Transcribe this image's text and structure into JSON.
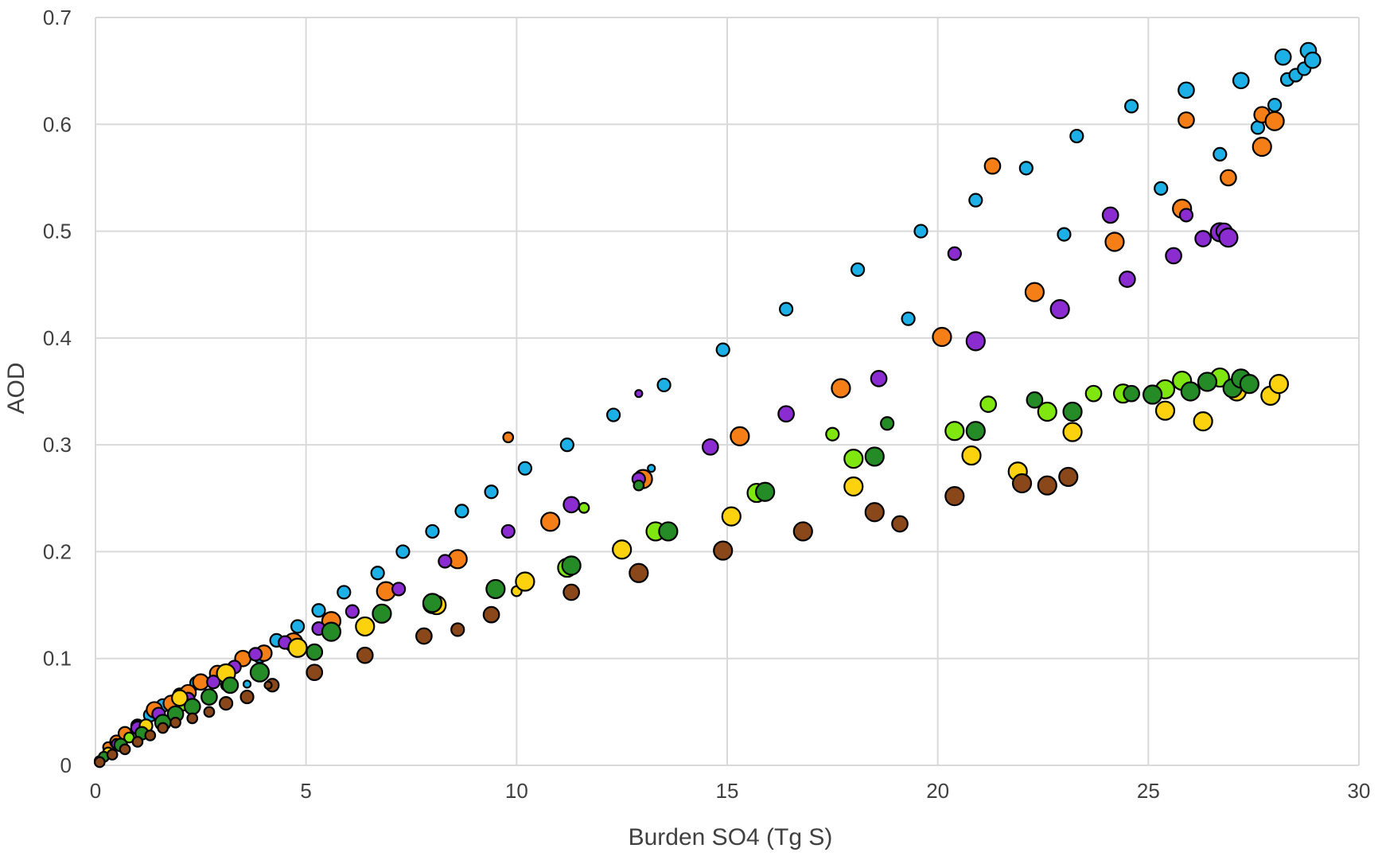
{
  "chart_data": {
    "type": "scatter",
    "title": "",
    "xlabel": "Burden SO4 (Tg S)",
    "ylabel": "AOD",
    "xlim": [
      0,
      30
    ],
    "ylim": [
      0,
      0.7
    ],
    "x_ticks": [
      "0",
      "5",
      "10",
      "15",
      "20",
      "25",
      "30"
    ],
    "y_ticks": [
      "0",
      "0.1",
      "0.2",
      "0.3",
      "0.4",
      "0.5",
      "0.6",
      "0.7"
    ],
    "grid": true,
    "legend": "none",
    "colors": {
      "cyan": "#1cb0e6",
      "orange": "#f57e17",
      "purple": "#8b2cd1",
      "lightgreen": "#7fe60f",
      "yellow": "#fcd20e",
      "darkgreen": "#248b27",
      "brown": "#8a4719",
      "marker_edge": "#000000",
      "grid": "#d9d9d9"
    },
    "series": [
      {
        "color": "cyan",
        "points": [
          [
            0.1,
            0.004,
            3
          ],
          [
            0.3,
            0.012,
            3
          ],
          [
            0.5,
            0.02,
            4
          ],
          [
            0.7,
            0.028,
            4
          ],
          [
            1.0,
            0.037,
            4
          ],
          [
            1.3,
            0.047,
            4
          ],
          [
            1.6,
            0.056,
            4
          ],
          [
            2.0,
            0.066,
            4
          ],
          [
            2.4,
            0.077,
            4
          ],
          [
            3.6,
            0.076,
            2
          ],
          [
            3.9,
            0.102,
            4
          ],
          [
            4.3,
            0.117,
            4
          ],
          [
            4.8,
            0.13,
            4
          ],
          [
            5.3,
            0.145,
            4
          ],
          [
            5.9,
            0.162,
            4
          ],
          [
            6.7,
            0.18,
            4
          ],
          [
            7.3,
            0.2,
            4
          ],
          [
            8.0,
            0.219,
            4
          ],
          [
            8.7,
            0.238,
            4
          ],
          [
            9.4,
            0.256,
            4
          ],
          [
            10.2,
            0.278,
            4
          ],
          [
            11.2,
            0.3,
            4
          ],
          [
            12.3,
            0.328,
            4
          ],
          [
            13.2,
            0.278,
            2
          ],
          [
            13.5,
            0.356,
            4
          ],
          [
            14.9,
            0.389,
            4
          ],
          [
            16.4,
            0.427,
            4
          ],
          [
            18.1,
            0.464,
            4
          ],
          [
            19.3,
            0.418,
            4
          ],
          [
            19.6,
            0.5,
            4
          ],
          [
            20.9,
            0.529,
            4
          ],
          [
            22.1,
            0.559,
            4
          ],
          [
            23.0,
            0.497,
            4
          ],
          [
            23.3,
            0.589,
            4
          ],
          [
            24.6,
            0.617,
            4
          ],
          [
            25.3,
            0.54,
            4
          ],
          [
            25.9,
            0.632,
            5
          ],
          [
            26.7,
            0.572,
            4
          ],
          [
            27.2,
            0.641,
            5
          ],
          [
            27.6,
            0.597,
            4
          ],
          [
            28.0,
            0.618,
            4
          ],
          [
            28.2,
            0.663,
            5
          ],
          [
            28.3,
            0.642,
            4
          ],
          [
            28.5,
            0.646,
            4
          ],
          [
            28.7,
            0.652,
            4
          ],
          [
            28.8,
            0.669,
            5
          ],
          [
            28.9,
            0.66,
            5
          ]
        ]
      },
      {
        "color": "orange",
        "points": [
          [
            0.3,
            0.017,
            3
          ],
          [
            0.5,
            0.022,
            4
          ],
          [
            0.7,
            0.03,
            4
          ],
          [
            1.0,
            0.036,
            4
          ],
          [
            1.4,
            0.052,
            5
          ],
          [
            1.8,
            0.058,
            5
          ],
          [
            2.2,
            0.068,
            5
          ],
          [
            2.5,
            0.078,
            5
          ],
          [
            2.9,
            0.086,
            5
          ],
          [
            3.5,
            0.1,
            5
          ],
          [
            4.0,
            0.105,
            5
          ],
          [
            4.7,
            0.115,
            6
          ],
          [
            5.6,
            0.135,
            6
          ],
          [
            6.9,
            0.163,
            6
          ],
          [
            8.6,
            0.193,
            6
          ],
          [
            9.8,
            0.307,
            3
          ],
          [
            10.8,
            0.228,
            6
          ],
          [
            13.0,
            0.268,
            6
          ],
          [
            15.3,
            0.308,
            6
          ],
          [
            17.7,
            0.353,
            6
          ],
          [
            20.1,
            0.401,
            6
          ],
          [
            21.3,
            0.561,
            5
          ],
          [
            22.3,
            0.443,
            6
          ],
          [
            24.2,
            0.49,
            6
          ],
          [
            25.8,
            0.521,
            6
          ],
          [
            25.9,
            0.604,
            5
          ],
          [
            26.9,
            0.55,
            5
          ],
          [
            27.7,
            0.579,
            6
          ],
          [
            27.7,
            0.609,
            5
          ],
          [
            28.0,
            0.603,
            6
          ]
        ]
      },
      {
        "color": "purple",
        "points": [
          [
            0.5,
            0.02,
            3
          ],
          [
            1.0,
            0.035,
            4
          ],
          [
            1.5,
            0.048,
            4
          ],
          [
            2.2,
            0.062,
            4
          ],
          [
            2.8,
            0.078,
            4
          ],
          [
            3.3,
            0.092,
            4
          ],
          [
            3.8,
            0.104,
            4
          ],
          [
            4.5,
            0.115,
            4
          ],
          [
            5.3,
            0.128,
            4
          ],
          [
            6.1,
            0.144,
            4
          ],
          [
            7.2,
            0.165,
            4
          ],
          [
            8.3,
            0.191,
            4
          ],
          [
            9.8,
            0.219,
            4
          ],
          [
            11.3,
            0.244,
            5
          ],
          [
            12.9,
            0.268,
            4
          ],
          [
            12.9,
            0.348,
            2
          ],
          [
            14.6,
            0.298,
            5
          ],
          [
            16.4,
            0.329,
            5
          ],
          [
            18.6,
            0.362,
            5
          ],
          [
            20.4,
            0.479,
            4
          ],
          [
            20.9,
            0.397,
            6
          ],
          [
            22.9,
            0.427,
            6
          ],
          [
            24.1,
            0.515,
            5
          ],
          [
            24.5,
            0.455,
            5
          ],
          [
            25.6,
            0.477,
            5
          ],
          [
            25.9,
            0.515,
            4
          ],
          [
            26.3,
            0.493,
            5
          ],
          [
            26.7,
            0.499,
            6
          ],
          [
            26.8,
            0.5,
            5
          ],
          [
            26.9,
            0.494,
            6
          ]
        ]
      },
      {
        "color": "lightgreen",
        "points": [
          [
            0.8,
            0.026,
            3
          ],
          [
            2.1,
            0.056,
            3
          ],
          [
            3.1,
            0.075,
            3
          ],
          [
            8.0,
            0.151,
            6
          ],
          [
            11.6,
            0.241,
            3
          ],
          [
            11.2,
            0.185,
            6
          ],
          [
            13.3,
            0.219,
            6
          ],
          [
            15.7,
            0.255,
            6
          ],
          [
            17.5,
            0.31,
            4
          ],
          [
            18.0,
            0.287,
            6
          ],
          [
            21.2,
            0.338,
            5
          ],
          [
            20.4,
            0.313,
            6
          ],
          [
            22.6,
            0.331,
            6
          ],
          [
            23.7,
            0.348,
            5
          ],
          [
            24.4,
            0.348,
            6
          ],
          [
            25.4,
            0.352,
            6
          ],
          [
            25.8,
            0.36,
            6
          ],
          [
            26.7,
            0.363,
            6
          ],
          [
            27.2,
            0.358,
            6
          ]
        ]
      },
      {
        "color": "yellow",
        "points": [
          [
            0.3,
            0.012,
            3
          ],
          [
            1.2,
            0.037,
            4
          ],
          [
            2.0,
            0.063,
            5
          ],
          [
            3.1,
            0.086,
            6
          ],
          [
            4.8,
            0.11,
            6
          ],
          [
            6.4,
            0.13,
            6
          ],
          [
            8.1,
            0.15,
            6
          ],
          [
            10.0,
            0.163,
            3
          ],
          [
            10.2,
            0.172,
            6
          ],
          [
            12.5,
            0.202,
            6
          ],
          [
            15.1,
            0.233,
            6
          ],
          [
            18.0,
            0.261,
            6
          ],
          [
            20.8,
            0.29,
            6
          ],
          [
            21.9,
            0.275,
            6
          ],
          [
            23.2,
            0.312,
            6
          ],
          [
            25.4,
            0.332,
            6
          ],
          [
            26.3,
            0.322,
            6
          ],
          [
            27.1,
            0.35,
            6
          ],
          [
            27.9,
            0.346,
            6
          ],
          [
            28.1,
            0.357,
            6
          ]
        ]
      },
      {
        "color": "darkgreen",
        "points": [
          [
            0.2,
            0.008,
            3
          ],
          [
            0.6,
            0.019,
            4
          ],
          [
            1.1,
            0.03,
            4
          ],
          [
            1.6,
            0.04,
            5
          ],
          [
            1.9,
            0.048,
            5
          ],
          [
            2.3,
            0.055,
            5
          ],
          [
            2.7,
            0.064,
            5
          ],
          [
            3.2,
            0.075,
            5
          ],
          [
            3.9,
            0.087,
            6
          ],
          [
            5.2,
            0.106,
            5
          ],
          [
            5.6,
            0.125,
            6
          ],
          [
            6.8,
            0.142,
            6
          ],
          [
            8.0,
            0.152,
            6
          ],
          [
            9.5,
            0.165,
            6
          ],
          [
            11.3,
            0.187,
            6
          ],
          [
            12.9,
            0.262,
            3
          ],
          [
            13.6,
            0.219,
            6
          ],
          [
            15.9,
            0.256,
            6
          ],
          [
            18.5,
            0.289,
            6
          ],
          [
            18.8,
            0.32,
            4
          ],
          [
            20.9,
            0.313,
            6
          ],
          [
            22.3,
            0.342,
            5
          ],
          [
            23.2,
            0.331,
            6
          ],
          [
            24.6,
            0.348,
            5
          ],
          [
            25.1,
            0.347,
            6
          ],
          [
            26.0,
            0.35,
            6
          ],
          [
            26.4,
            0.359,
            6
          ],
          [
            27.0,
            0.353,
            6
          ],
          [
            27.2,
            0.362,
            6
          ],
          [
            27.4,
            0.357,
            6
          ]
        ]
      },
      {
        "color": "brown",
        "points": [
          [
            0.1,
            0.003,
            3
          ],
          [
            0.4,
            0.01,
            3
          ],
          [
            0.7,
            0.015,
            3
          ],
          [
            1.0,
            0.022,
            3
          ],
          [
            1.3,
            0.028,
            3
          ],
          [
            1.6,
            0.035,
            3
          ],
          [
            1.9,
            0.04,
            3
          ],
          [
            2.3,
            0.044,
            3
          ],
          [
            2.7,
            0.05,
            3
          ],
          [
            3.1,
            0.058,
            4
          ],
          [
            3.6,
            0.064,
            4
          ],
          [
            4.2,
            0.075,
            4
          ],
          [
            4.1,
            0.075,
            2
          ],
          [
            5.2,
            0.087,
            5
          ],
          [
            6.4,
            0.103,
            5
          ],
          [
            7.8,
            0.121,
            5
          ],
          [
            8.6,
            0.127,
            4
          ],
          [
            9.4,
            0.141,
            5
          ],
          [
            11.3,
            0.162,
            5
          ],
          [
            12.9,
            0.18,
            6
          ],
          [
            14.9,
            0.201,
            6
          ],
          [
            16.8,
            0.219,
            6
          ],
          [
            18.5,
            0.237,
            6
          ],
          [
            19.1,
            0.226,
            5
          ],
          [
            20.4,
            0.252,
            6
          ],
          [
            22.0,
            0.264,
            6
          ],
          [
            22.6,
            0.262,
            6
          ],
          [
            23.1,
            0.27,
            6
          ]
        ]
      }
    ]
  }
}
